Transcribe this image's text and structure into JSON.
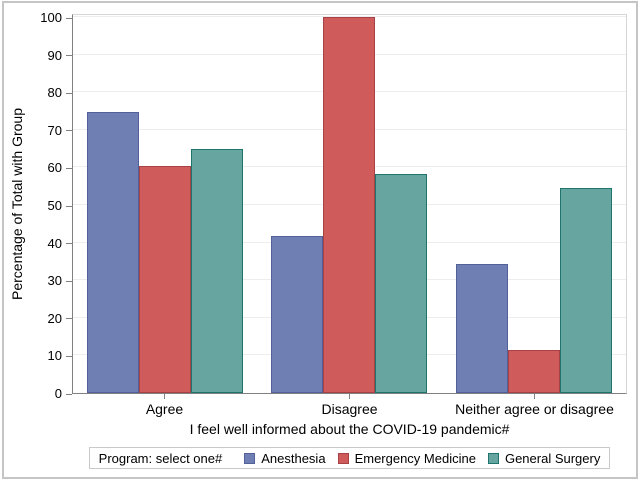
{
  "figure": {
    "background": "#ffffff",
    "border_color": "#c5c5c5",
    "gridline_color": "#ededed",
    "axis_line_color": "#808080",
    "frame_color": "#d6d6d6"
  },
  "chart_data": {
    "type": "bar",
    "title": "",
    "categories": [
      "Agree",
      "Disagree",
      "Neither agree or disagree"
    ],
    "series": [
      {
        "name": "Anesthesia",
        "fill": "#6F7EB3",
        "outline": "#53619B",
        "values": [
          74.7,
          41.8,
          34.2
        ]
      },
      {
        "name": "Emergency Medicine",
        "fill": "#D05B5B",
        "outline": "#A64146",
        "values": [
          60.5,
          100.0,
          11.4
        ]
      },
      {
        "name": "General Surgery",
        "fill": "#66A5A0",
        "outline": "#1E756E",
        "values": [
          65.0,
          58.3,
          54.5
        ]
      }
    ],
    "xlabel": "I feel well informed about the COVID-19 pandemic#",
    "ylabel": "Percentage of Total with Group",
    "ylim": [
      0,
      100
    ],
    "yticks": [
      0,
      10,
      20,
      30,
      40,
      50,
      60,
      70,
      80,
      90,
      100
    ],
    "grid": "horizontal",
    "legend": {
      "title": "Program: select one#",
      "position": "bottom",
      "entries": [
        "Anesthesia",
        "Emergency Medicine",
        "General Surgery"
      ]
    }
  }
}
